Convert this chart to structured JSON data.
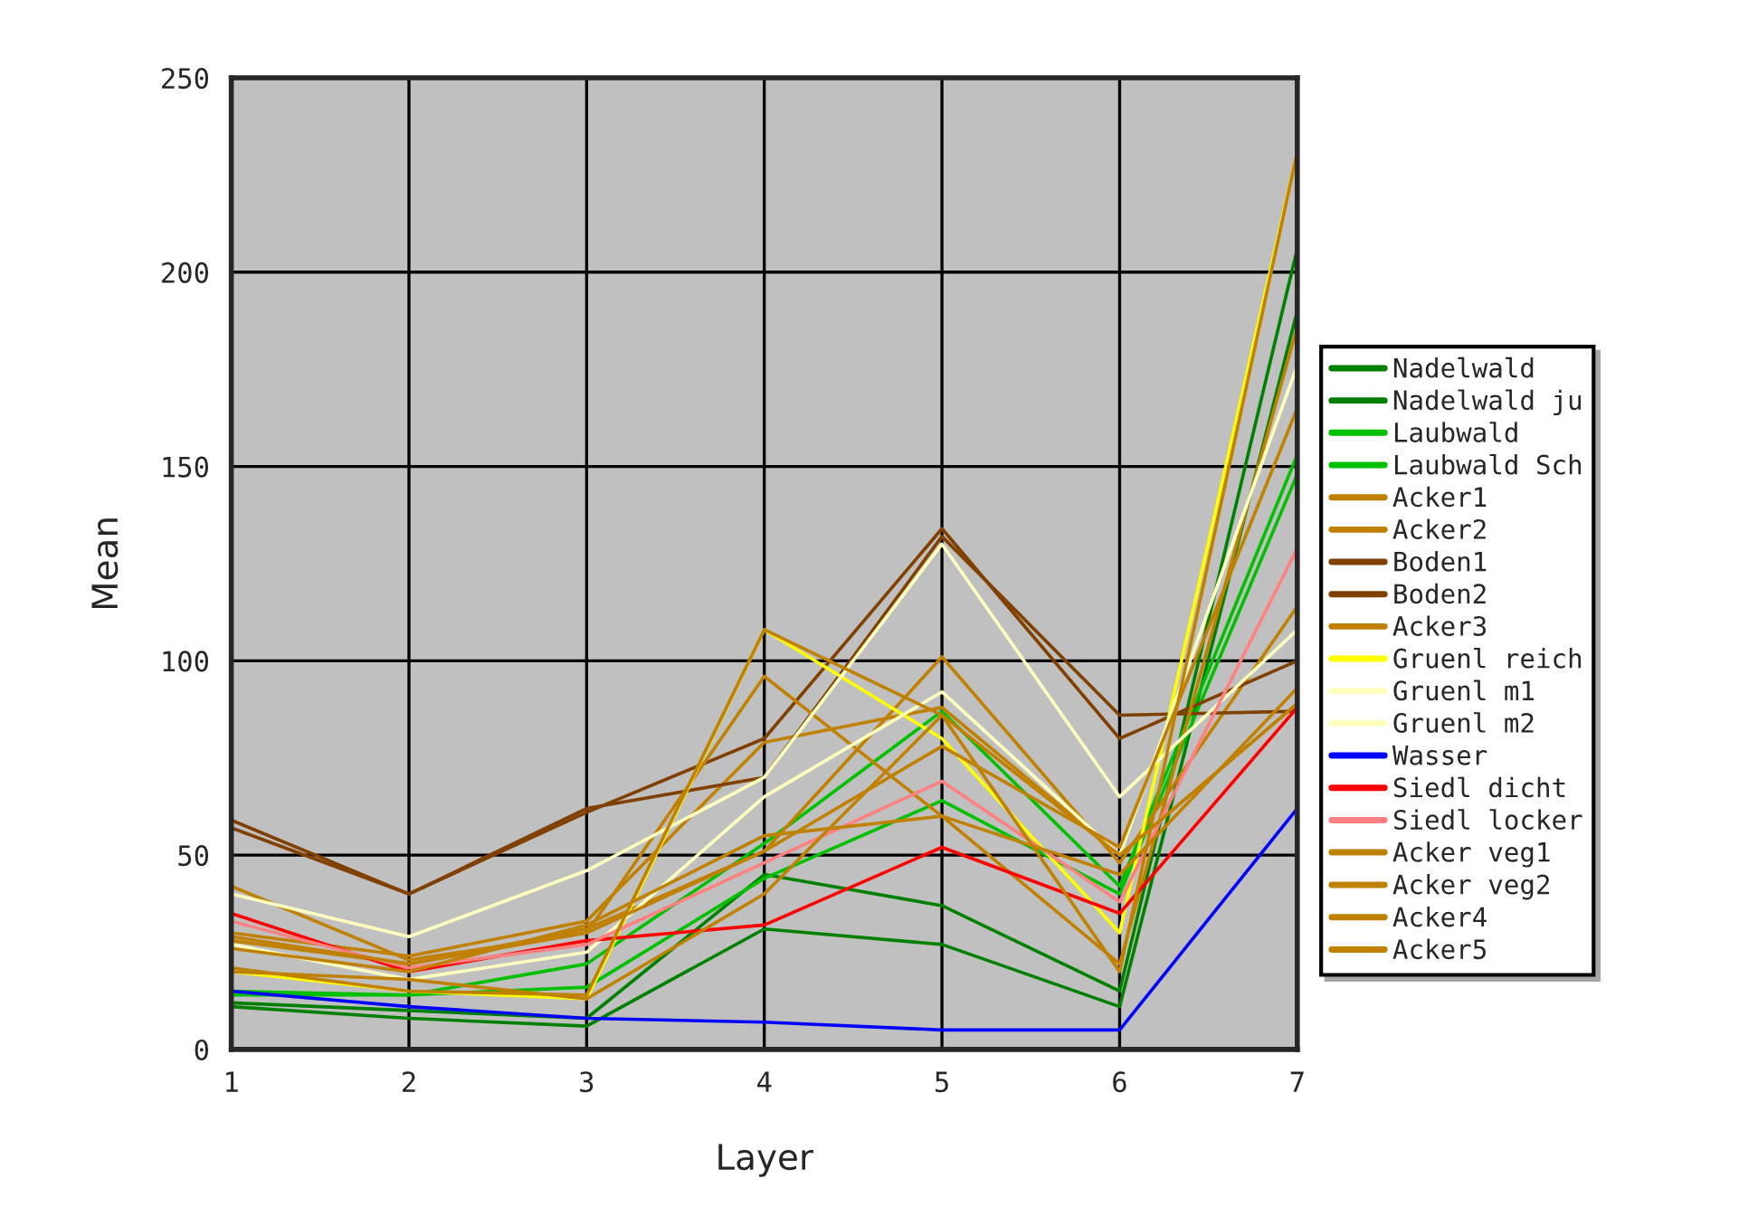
{
  "chart_data": {
    "type": "line",
    "xlabel": "Layer",
    "ylabel": "Mean",
    "x": [
      1,
      2,
      3,
      4,
      5,
      6,
      7
    ],
    "xlim": [
      1,
      7
    ],
    "xticks": [
      1,
      2,
      3,
      4,
      5,
      6,
      7
    ],
    "ylim": [
      0,
      250
    ],
    "yticks": [
      0,
      50,
      100,
      150,
      200,
      250
    ],
    "grid": true,
    "legend": "right",
    "series": [
      {
        "name": "Nadelwald",
        "color": "#008000",
        "values": [
          12,
          10,
          8,
          45,
          37,
          15,
          206
        ]
      },
      {
        "name": "Nadelwald ju",
        "color": "#008000",
        "values": [
          11,
          8,
          6,
          31,
          27,
          11,
          190
        ]
      },
      {
        "name": "Laubwald",
        "color": "#00c000",
        "values": [
          15,
          14,
          22,
          53,
          87,
          42,
          153
        ]
      },
      {
        "name": "Laubwald Sch",
        "color": "#00c000",
        "values": [
          14,
          14,
          16,
          44,
          64,
          40,
          148
        ]
      },
      {
        "name": "Acker1",
        "color": "#c08000",
        "values": [
          30,
          24,
          33,
          79,
          88,
          50,
          89
        ]
      },
      {
        "name": "Acker2",
        "color": "#c08000",
        "values": [
          28,
          22,
          31,
          51,
          101,
          48,
          114
        ]
      },
      {
        "name": "Boden1",
        "color": "#804000",
        "values": [
          59,
          40,
          61,
          80,
          134,
          80,
          100
        ]
      },
      {
        "name": "Boden2",
        "color": "#804000",
        "values": [
          57,
          40,
          62,
          70,
          132,
          86,
          87
        ]
      },
      {
        "name": "Acker3",
        "color": "#c08000",
        "values": [
          42,
          23,
          30,
          96,
          60,
          22,
          186
        ]
      },
      {
        "name": "Gruenl reich",
        "color": "#ffff00",
        "values": [
          20,
          15,
          13,
          108,
          80,
          30,
          231
        ]
      },
      {
        "name": "Gruenl m1",
        "color": "#ffffc0",
        "values": [
          40,
          29,
          46,
          70,
          130,
          65,
          108
        ]
      },
      {
        "name": "Gruenl m2",
        "color": "#ffffc0",
        "values": [
          27,
          18,
          25,
          65,
          92,
          50,
          176
        ]
      },
      {
        "name": "Wasser",
        "color": "#0000ff",
        "values": [
          15,
          11,
          8,
          7,
          5,
          5,
          62
        ]
      },
      {
        "name": "Siedl dicht",
        "color": "#ff0000",
        "values": [
          35,
          20,
          28,
          32,
          52,
          35,
          88
        ]
      },
      {
        "name": "Siedl locker",
        "color": "#ff8080",
        "values": [
          33,
          21,
          27,
          48,
          69,
          38,
          129
        ]
      },
      {
        "name": "Acker veg1",
        "color": "#c08000",
        "values": [
          21,
          15,
          14,
          108,
          86,
          20,
          231
        ]
      },
      {
        "name": "Acker veg2",
        "color": "#c08000",
        "values": [
          29,
          22,
          30,
          51,
          78,
          52,
          165
        ]
      },
      {
        "name": "Acker4",
        "color": "#c08000",
        "values": [
          20,
          18,
          13,
          40,
          86,
          50,
          89
        ]
      },
      {
        "name": "Acker5",
        "color": "#c08000",
        "values": [
          26,
          20,
          32,
          55,
          60,
          45,
          93
        ]
      }
    ]
  }
}
